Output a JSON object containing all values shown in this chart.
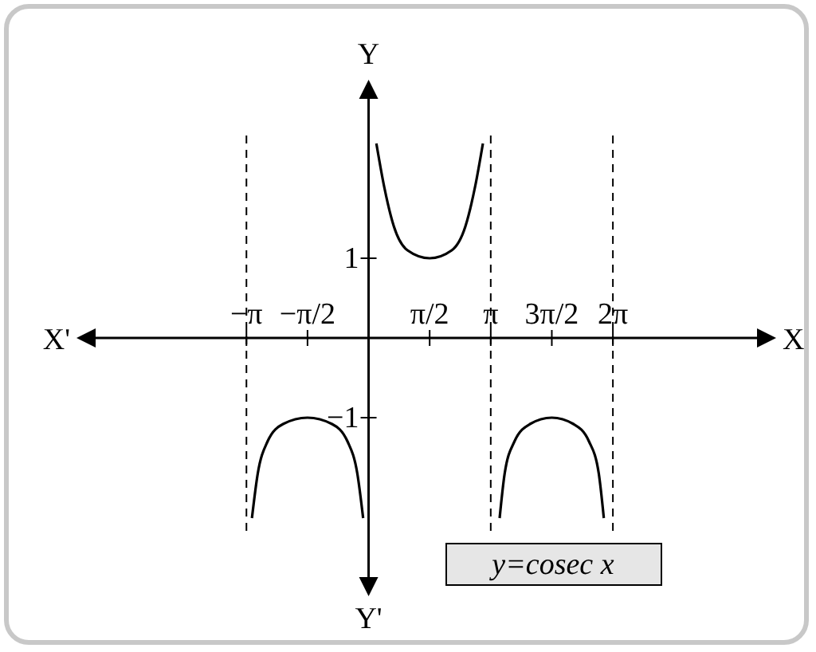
{
  "chart_data": {
    "type": "line",
    "xlabel": "X",
    "ylabel": "Y",
    "annotations": [
      "X'",
      "Y'",
      "y=cosec x"
    ],
    "xlim": [
      -7.43,
      10.4
    ],
    "ylim": [
      -3.2,
      3.2
    ],
    "xticks": [
      {
        "value": -3.1416,
        "label": "−π"
      },
      {
        "value": -1.5708,
        "label": "−π/2"
      },
      {
        "value": 1.5708,
        "label": "π/2"
      },
      {
        "value": 3.1416,
        "label": "π"
      },
      {
        "value": 4.7124,
        "label": "3π/2"
      },
      {
        "value": 6.2832,
        "label": "2π"
      }
    ],
    "yticks": [
      {
        "value": -1,
        "label": "−1"
      },
      1
    ],
    "grid": false,
    "marker": "none",
    "line_style": "solid",
    "ref_lines": [
      {
        "axis": "x",
        "value": -3.1416,
        "line_style": "dashed",
        "color": "#000000"
      },
      {
        "axis": "x",
        "value": 3.1416,
        "line_style": "dashed",
        "color": "#000000"
      },
      {
        "axis": "x",
        "value": 6.2832,
        "line_style": "dashed",
        "color": "#000000"
      }
    ],
    "series": [
      {
        "color": "#000000",
        "x": [
          -3.0,
          -2.85,
          -2.6,
          -2.2,
          -1.571,
          -0.94,
          -0.54,
          -0.29,
          -0.14
        ],
        "values": [
          -2.26,
          -1.7,
          -1.3,
          -1.08,
          -1.0,
          -1.08,
          -1.3,
          -1.7,
          -2.26
        ]
      },
      {
        "color": "#000000",
        "x": [
          0.2,
          0.4,
          0.65,
          1.0,
          1.571,
          2.14,
          2.49,
          2.74,
          2.94
        ],
        "values": [
          2.44,
          1.9,
          1.4,
          1.1,
          1.0,
          1.1,
          1.4,
          1.9,
          2.44
        ]
      },
      {
        "color": "#000000",
        "x": [
          3.37,
          3.5,
          3.75,
          4.15,
          4.712,
          5.27,
          5.67,
          5.92,
          6.05
        ],
        "values": [
          -2.26,
          -1.7,
          -1.3,
          -1.08,
          -1.0,
          -1.08,
          -1.3,
          -1.7,
          -2.26
        ]
      }
    ]
  }
}
